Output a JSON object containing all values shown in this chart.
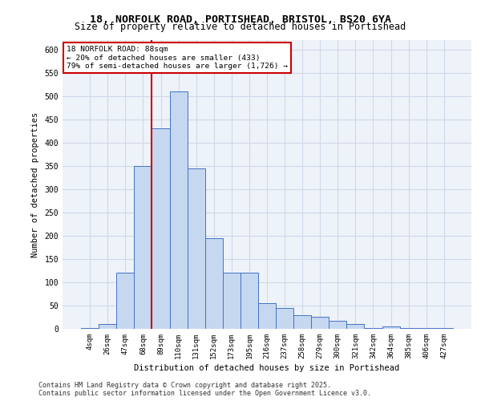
{
  "title_line1": "18, NORFOLK ROAD, PORTISHEAD, BRISTOL, BS20 6YA",
  "title_line2": "Size of property relative to detached houses in Portishead",
  "xlabel": "Distribution of detached houses by size in Portishead",
  "ylabel": "Number of detached properties",
  "footer": "Contains HM Land Registry data © Crown copyright and database right 2025.\nContains public sector information licensed under the Open Government Licence v3.0.",
  "categories": [
    "4sqm",
    "26sqm",
    "47sqm",
    "68sqm",
    "89sqm",
    "110sqm",
    "131sqm",
    "152sqm",
    "173sqm",
    "195sqm",
    "216sqm",
    "237sqm",
    "258sqm",
    "279sqm",
    "300sqm",
    "321sqm",
    "342sqm",
    "364sqm",
    "385sqm",
    "406sqm",
    "427sqm"
  ],
  "values": [
    2,
    10,
    120,
    350,
    430,
    510,
    345,
    195,
    120,
    120,
    55,
    45,
    30,
    25,
    18,
    10,
    2,
    5,
    2,
    2,
    2
  ],
  "bar_color": "#c5d8f0",
  "bar_edge_color": "#4472c4",
  "grid_color": "#d0d8e8",
  "bg_color": "#eef2f9",
  "annotation_text": "18 NORFOLK ROAD: 88sqm\n← 20% of detached houses are smaller (433)\n79% of semi-detached houses are larger (1,726) →",
  "annotation_box_color": "#cc0000",
  "vline_x_index": 4,
  "vline_color": "#cc0000",
  "ylim": [
    0,
    620
  ],
  "yticks": [
    0,
    50,
    100,
    150,
    200,
    250,
    300,
    350,
    400,
    450,
    500,
    550,
    600
  ]
}
